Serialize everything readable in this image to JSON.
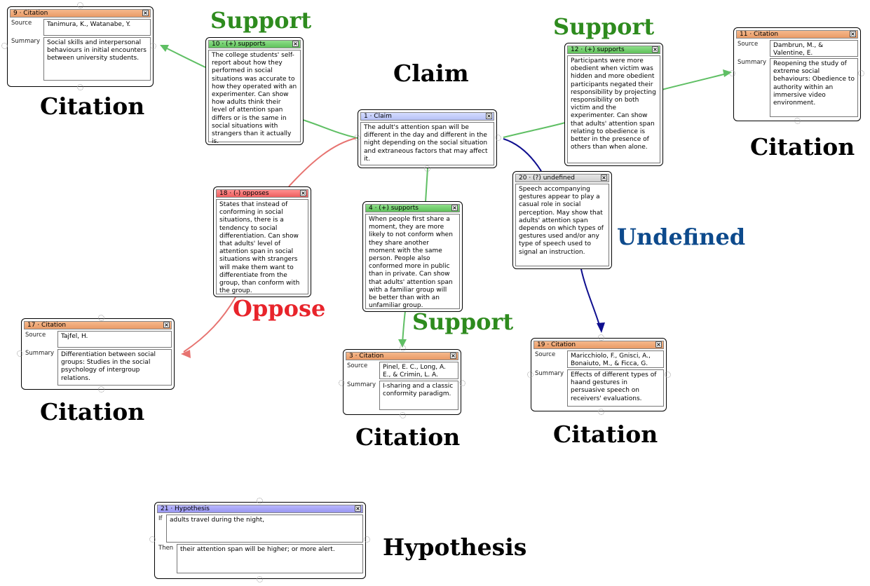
{
  "colors": {
    "support": "#5fbf64",
    "oppose": "#e77370",
    "undefined": "#0f0f8f",
    "label_support": "#2e8b1e",
    "label_oppose": "#e8242b",
    "label_undefined": "#0d4a8c"
  },
  "icons": {
    "close": "close-icon",
    "handle": "connector-handle-icon"
  },
  "labels": {
    "support_1": "Support",
    "support_2": "Support",
    "support_3": "Support",
    "claim": "Claim",
    "undefined": "Undefined",
    "oppose": "Oppose",
    "citation_1": "Citation",
    "citation_2": "Citation",
    "citation_3": "Citation",
    "citation_4": "Citation",
    "citation_5": "Citation",
    "hypothesis": "Hypothesis"
  },
  "nodes": {
    "n9": {
      "header": "9 · Citation",
      "source_label": "Source",
      "source": "Tanimura, K., Watanabe, Y.",
      "summary_label": "Summary",
      "summary": "Social skills and interpersonal behaviours in initial encounters between university students."
    },
    "n10": {
      "header": "10 · (+) supports",
      "text": "The college students' self-report about how they performed in social situations was accurate to how they operated with an experimenter. Can show how adults think their level of attention span differs or is the same in social situations with strangers than it actually is."
    },
    "n1": {
      "header": "1 · Claim",
      "text": "The adult's attention span will be different in the day and different in the night depending on the social situation and extraneous factors that may affect it."
    },
    "n12": {
      "header": "12 · (+) supports",
      "text": "Participants were more obedient when victim was hidden and more obedient participants negated their responsibility by projecting responsibility on both victim and the experimenter. Can show that adults' attention span relating to obedience is better in the presence of others than when alone."
    },
    "n11": {
      "header": "11 · Citation",
      "source_label": "Source",
      "source": "Dambrun, M., & Valentine, E.",
      "summary_label": "Summary",
      "summary": "Reopening the study of extreme social behaviours: Obedience to authority within an immersive video environment."
    },
    "n18": {
      "header": "18 · (-) opposes",
      "text": "States that instead of conforming in social situations, there is a tendency to social differentiation. Can show that adults' level of attention span in social situations with strangers will make them want to differentiate from the group, than conform with the group."
    },
    "n4": {
      "header": "4 · (+) supports",
      "text": "When people first share a moment, they are more likely to not conform when they share another moment with the same person. People also conformed more in public than in private. Can show that adults' attention span with a familiar group will be better than with an unfamiliar group."
    },
    "n20": {
      "header": "20 · (?) undefined",
      "text": "Speech accompanying gestures appear to play a casual role in social perception. May show that adults' attention span depends on which types of gestures used and/or any type of speech used to signal an instruction."
    },
    "n17": {
      "header": "17 · Citation",
      "source_label": "Source",
      "source": "Tajfel, H.",
      "summary_label": "Summary",
      "summary": "Differentiation between social groups: Studies in the social psychology of intergroup relations."
    },
    "n3": {
      "header": "3 · Citation",
      "source_label": "Source",
      "source": "Pinel, E. C., Long, A. E., & Crimin, L. A.",
      "summary_label": "Summary",
      "summary": "I-sharing and a classic conformity paradigm."
    },
    "n19": {
      "header": "19 · Citation",
      "source_label": "Source",
      "source": "Maricchiolo, F., Gnisci, A., Bonaiuto, M., & Ficca, G.",
      "summary_label": "Summary",
      "summary": "Effects of different types of haand gestures in persuasive speech on receivers' evaluations."
    },
    "n21": {
      "header": "21 · Hypothesis",
      "if_label": "If",
      "if_text": "adults travel during the night,",
      "then_label": "Then",
      "then_text": "their attention span will be higher; or more alert."
    }
  }
}
